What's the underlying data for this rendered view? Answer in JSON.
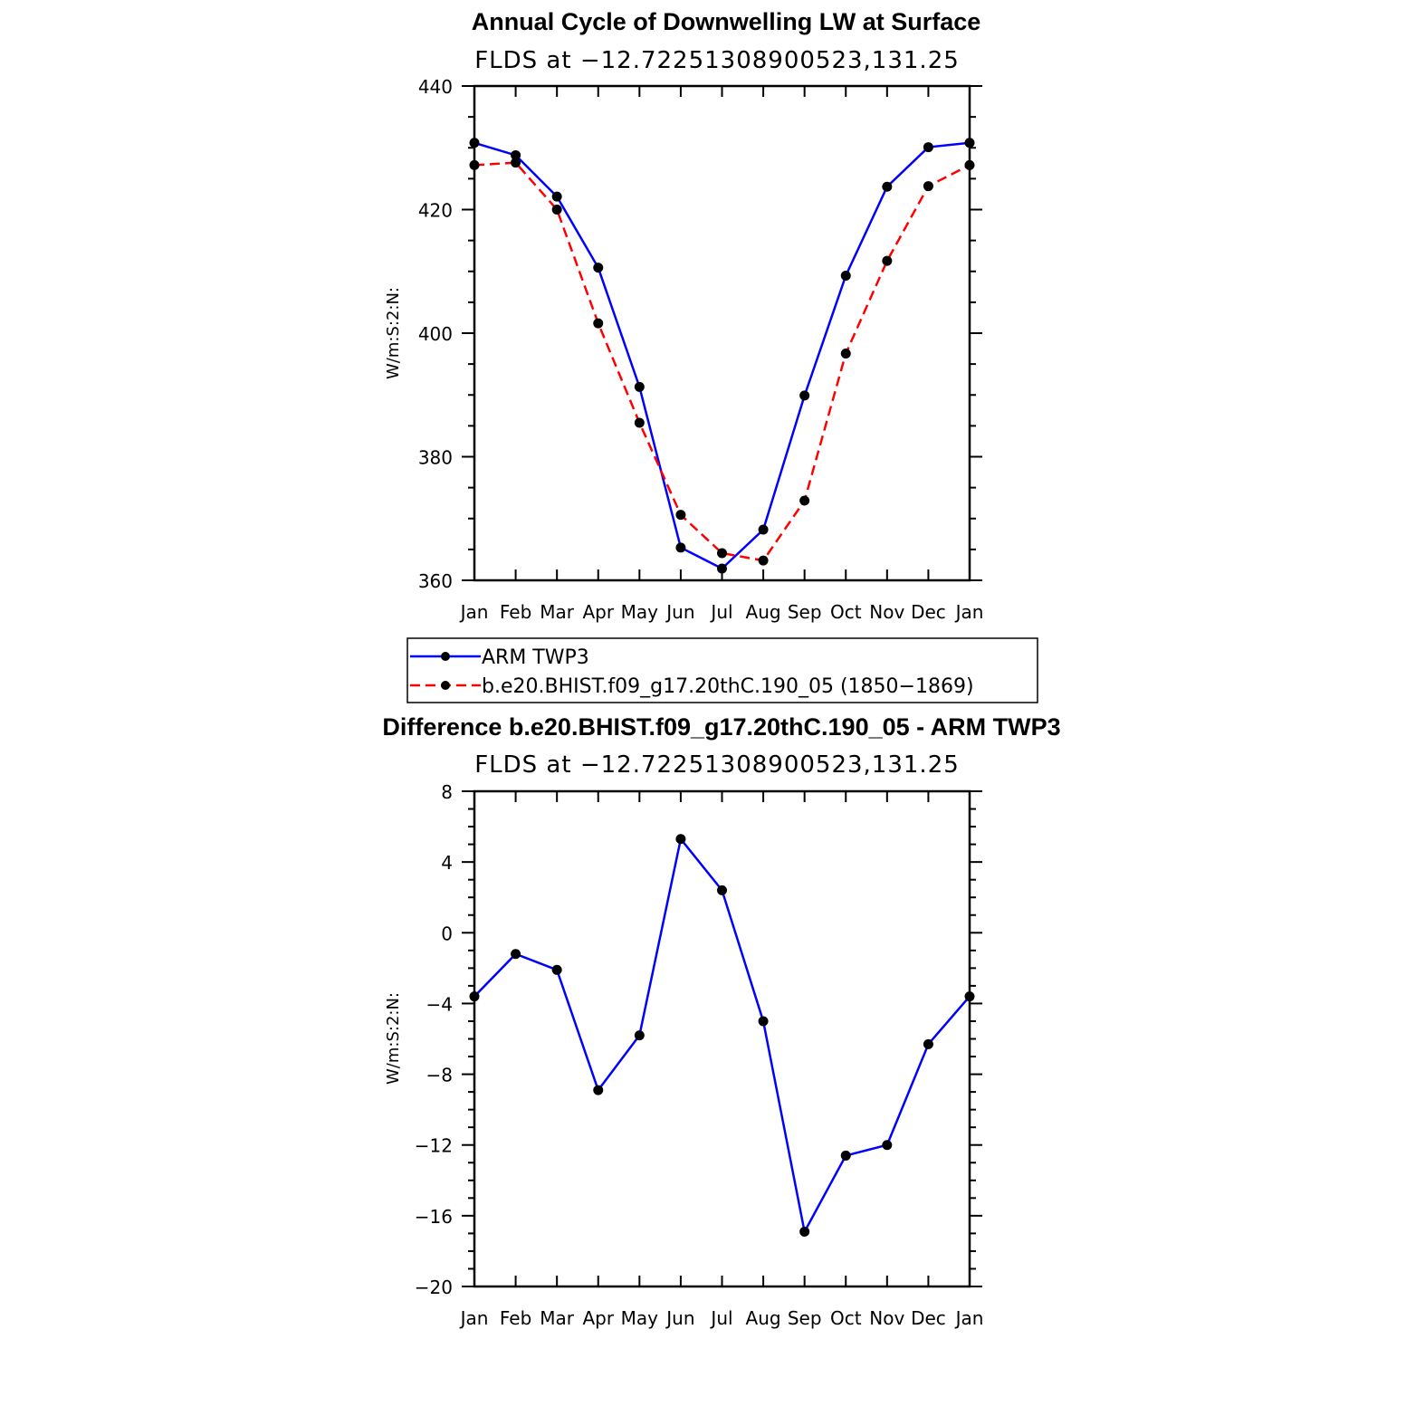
{
  "chart_data": [
    {
      "type": "line",
      "title": "Annual Cycle of Downwelling LW at Surface",
      "subtitle": "FLDS at −12.72251308900523,131.25",
      "ylabel": "W/m:S:2:N:",
      "xlabel": "",
      "categories": [
        "Jan",
        "Feb",
        "Mar",
        "Apr",
        "May",
        "Jun",
        "Jul",
        "Aug",
        "Sep",
        "Oct",
        "Nov",
        "Dec",
        "Jan"
      ],
      "ylim": [
        360,
        440
      ],
      "yticks": [
        360,
        380,
        400,
        420,
        440
      ],
      "ytick_labels": [
        "360",
        "380",
        "400",
        "420",
        "440"
      ],
      "series": [
        {
          "name": "ARM TWP3",
          "color": "#0000ff",
          "dash": "solid",
          "values": [
            430.8,
            428.8,
            422.1,
            410.6,
            391.3,
            365.3,
            361.9,
            368.2,
            389.9,
            409.3,
            423.7,
            430.1,
            430.8
          ]
        },
        {
          "name": "b.e20.BHIST.f09_g17.20thC.190_05 (1850−1869)",
          "color": "#ff0000",
          "dash": "dashed",
          "values": [
            427.2,
            427.6,
            420.0,
            401.6,
            385.5,
            370.6,
            364.4,
            363.2,
            372.9,
            396.7,
            411.7,
            423.8,
            427.2
          ]
        }
      ]
    },
    {
      "type": "line",
      "title": "Difference b.e20.BHIST.f09_g17.20thC.190_05 - ARM TWP3",
      "subtitle": "FLDS at −12.72251308900523,131.25",
      "ylabel": "W/m:S:2:N:",
      "xlabel": "",
      "categories": [
        "Jan",
        "Feb",
        "Mar",
        "Apr",
        "May",
        "Jun",
        "Jul",
        "Aug",
        "Sep",
        "Oct",
        "Nov",
        "Dec",
        "Jan"
      ],
      "ylim": [
        -20,
        8
      ],
      "yticks": [
        -20,
        -16,
        -12,
        -8,
        -4,
        0,
        4,
        8
      ],
      "ytick_labels": [
        "−20",
        "−16",
        "−12",
        "−8",
        "−4",
        "0",
        "4",
        "8"
      ],
      "series": [
        {
          "color": "#0000ff",
          "dash": "solid",
          "values": [
            -3.6,
            -1.2,
            -2.1,
            -8.9,
            -5.8,
            5.3,
            2.4,
            -5.0,
            -16.9,
            -12.6,
            -12.0,
            -6.3,
            -3.6
          ]
        }
      ]
    }
  ]
}
